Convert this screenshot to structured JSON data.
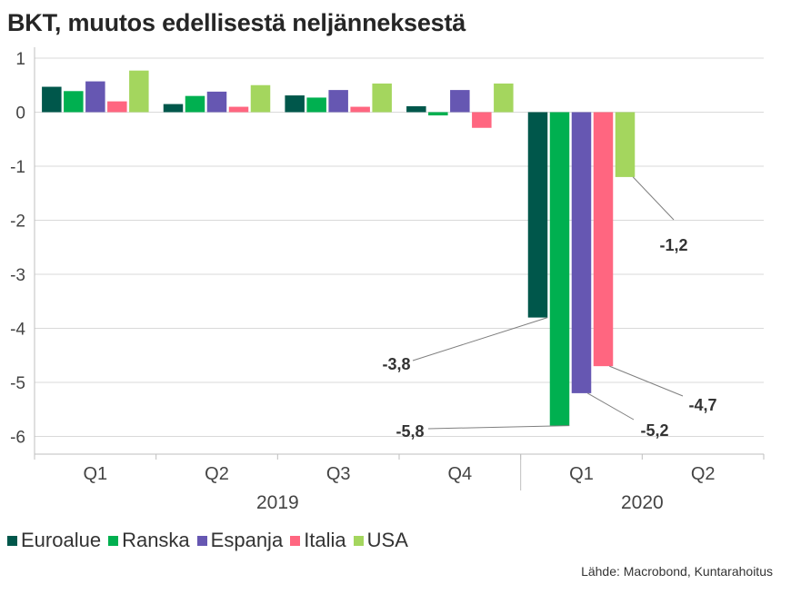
{
  "chart_data": {
    "type": "bar",
    "title": "BKT, muutos edellisestä neljänneksestä",
    "categories": [
      "Q1",
      "Q2",
      "Q3",
      "Q4",
      "Q1",
      "Q2"
    ],
    "groups": [
      {
        "label": "2019",
        "categories": [
          "Q1",
          "Q2",
          "Q3",
          "Q4"
        ]
      },
      {
        "label": "2020",
        "categories": [
          "Q1",
          "Q2"
        ]
      }
    ],
    "series": [
      {
        "name": "Euroalue",
        "color": "#00574B",
        "values": [
          0.47,
          0.15,
          0.31,
          0.11,
          -3.8,
          null
        ]
      },
      {
        "name": "Ranska",
        "color": "#00B050",
        "values": [
          0.39,
          0.3,
          0.27,
          -0.06,
          -5.8,
          null
        ]
      },
      {
        "name": "Espanja",
        "color": "#6657B2",
        "values": [
          0.57,
          0.38,
          0.41,
          0.41,
          -5.2,
          null
        ]
      },
      {
        "name": "Italia",
        "color": "#FF6680",
        "values": [
          0.2,
          0.1,
          0.1,
          -0.29,
          -4.7,
          null
        ]
      },
      {
        "name": "USA",
        "color": "#A4D65E",
        "values": [
          0.77,
          0.5,
          0.53,
          0.53,
          -1.2,
          null
        ]
      }
    ],
    "yticks": [
      1,
      0,
      -1,
      -2,
      -3,
      -4,
      -5,
      -6
    ],
    "ylim": [
      -6.2,
      1.05
    ],
    "grid": true,
    "legend": "bottom-left",
    "annotations": [
      {
        "text": "-3,8",
        "series": 0,
        "category": 4
      },
      {
        "text": "-5,8",
        "series": 1,
        "category": 4
      },
      {
        "text": "-5,2",
        "series": 2,
        "category": 4
      },
      {
        "text": "-4,7",
        "series": 3,
        "category": 4
      },
      {
        "text": "-1,2",
        "series": 4,
        "category": 4
      }
    ],
    "source": "Lähde: Macrobond, Kuntarahoitus"
  }
}
